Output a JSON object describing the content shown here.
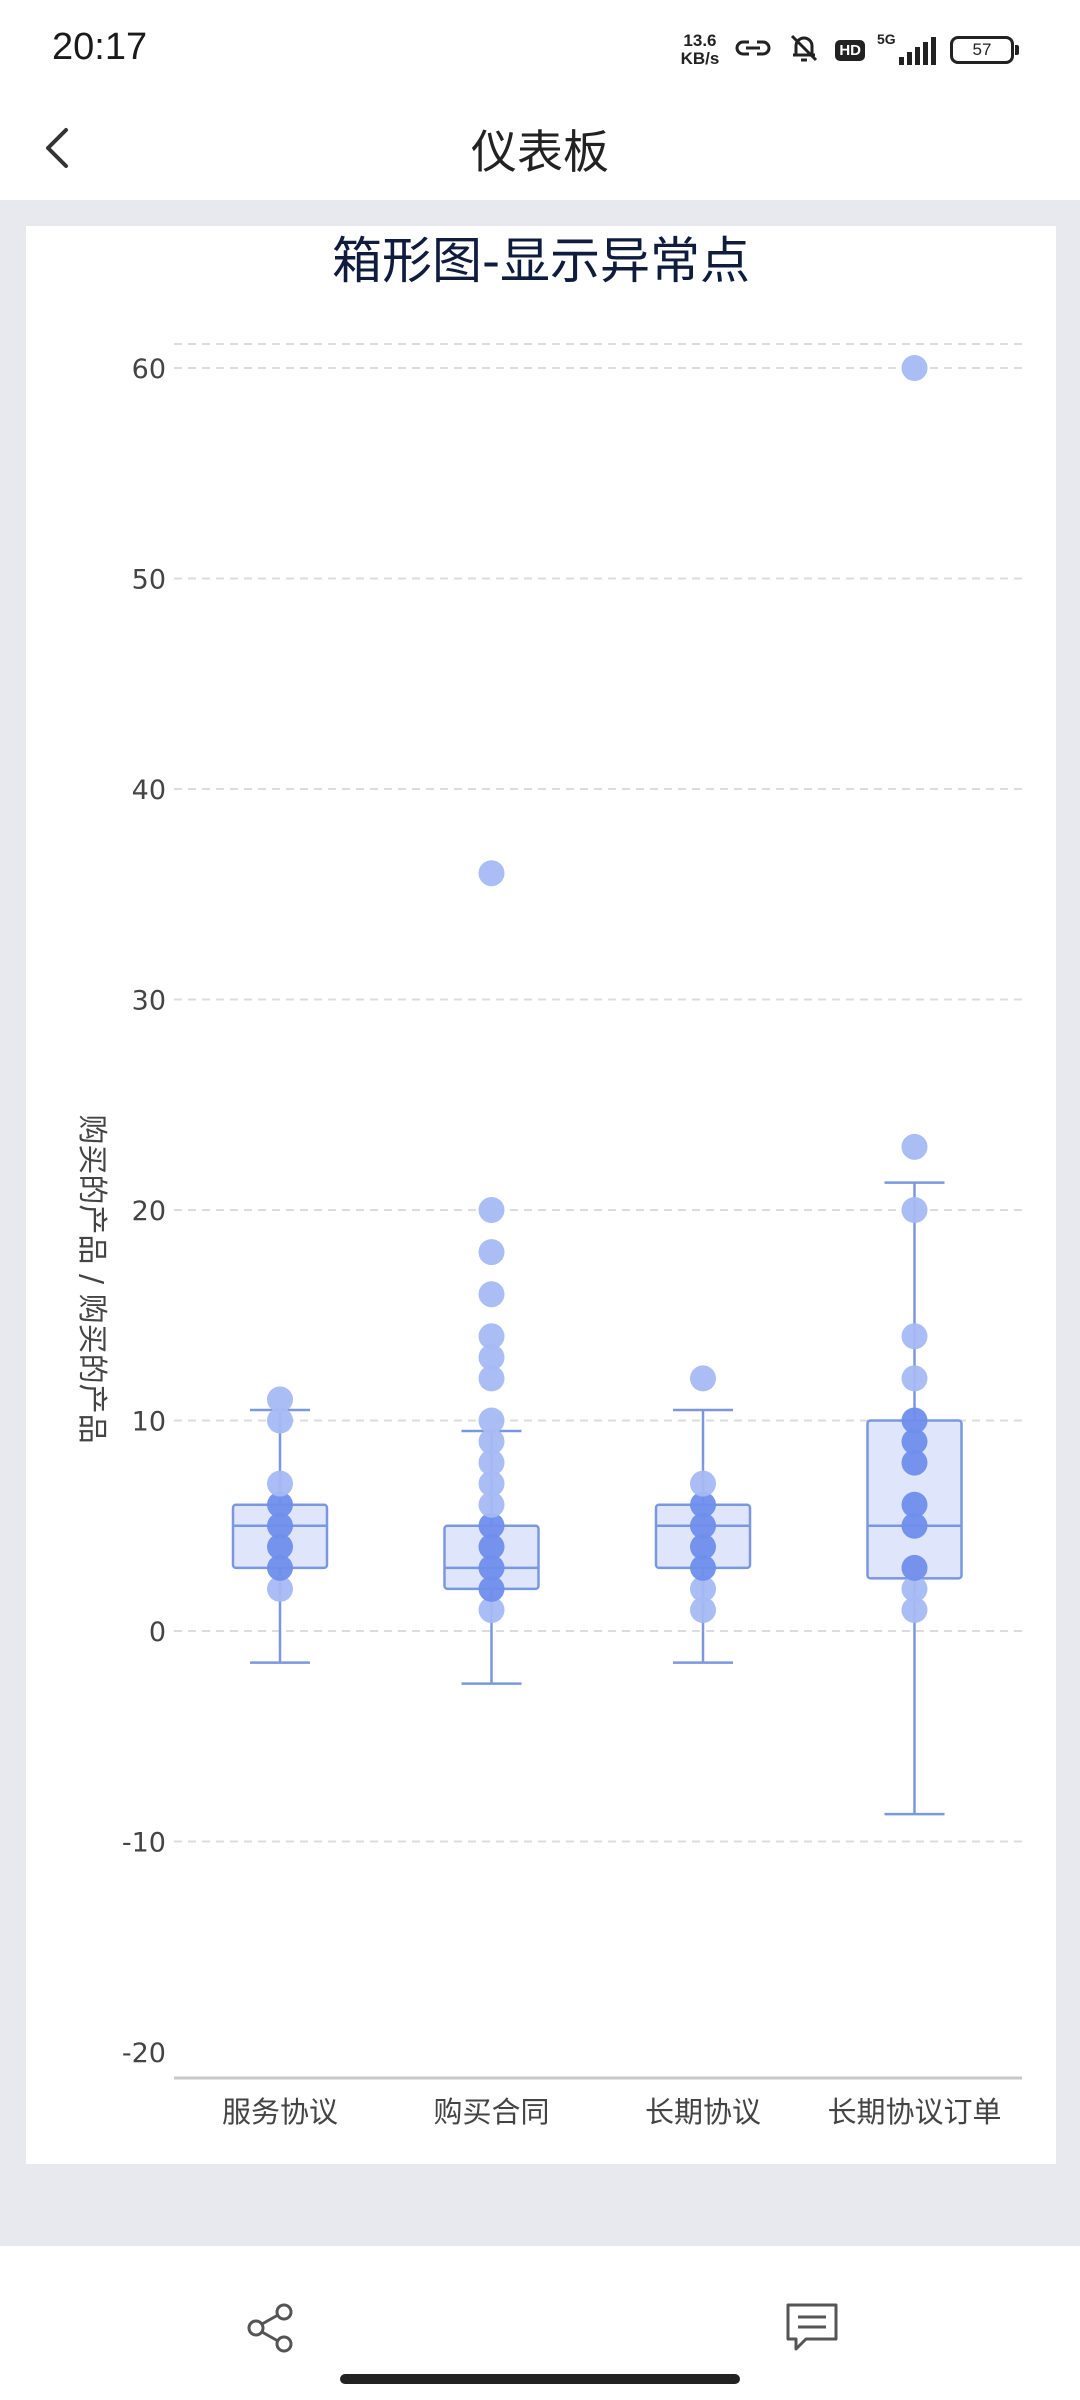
{
  "status_bar": {
    "time": "20:17",
    "net_speed_value": "13.6",
    "net_speed_unit": "KB/s",
    "hd_label": "HD",
    "network_type": "5G",
    "battery_level": "57",
    "icons": [
      "link-icon",
      "bell-muted-icon",
      "hd-icon",
      "signal-icon",
      "battery-icon"
    ]
  },
  "nav": {
    "title": "仪表板",
    "back_icon": "chevron-left-icon"
  },
  "bottom_bar": {
    "share_icon": "share-icon",
    "comment_icon": "comment-icon"
  },
  "colors": {
    "box_fill": "#dfe6fb",
    "box_stroke": "#7a97e0",
    "point_dark": "#6f8eec",
    "point_light": "#a5b9f3",
    "grid": "#dcdcdc",
    "axis_text": "#444444",
    "title_text": "#0f1c3d"
  },
  "chart_data": {
    "type": "box",
    "title": "箱形图-显示异常点",
    "ylabel": "购买的产品 / 购买的产品",
    "ylim": [
      -20,
      60
    ],
    "yticks": [
      60,
      50,
      40,
      30,
      20,
      10,
      0,
      -10,
      -20
    ],
    "grid": true,
    "categories": [
      "服务协议",
      "购买合同",
      "长期协议",
      "长期协议订单"
    ],
    "boxes": [
      {
        "category": "服务协议",
        "whisker_low": -1.5,
        "q1": 3,
        "median": 5,
        "q3": 6,
        "whisker_high": 10.5
      },
      {
        "category": "购买合同",
        "whisker_low": -2.5,
        "q1": 2,
        "median": 3,
        "q3": 5,
        "whisker_high": 9.5
      },
      {
        "category": "长期协议",
        "whisker_low": -1.5,
        "q1": 3,
        "median": 5,
        "q3": 6,
        "whisker_high": 10.5
      },
      {
        "category": "长期协议订单",
        "whisker_low": -8.7,
        "q1": 2.5,
        "median": 5,
        "q3": 10,
        "whisker_high": 21.3
      }
    ],
    "points": [
      {
        "category": "服务协议",
        "values": [
          2,
          3,
          4,
          5,
          6,
          7,
          10,
          11
        ]
      },
      {
        "category": "购买合同",
        "values": [
          1,
          2,
          3,
          4,
          5,
          6,
          7,
          8,
          9,
          10,
          12,
          13,
          14,
          16,
          18,
          20,
          36
        ]
      },
      {
        "category": "长期协议",
        "values": [
          1,
          2,
          3,
          4,
          5,
          6,
          7,
          12
        ]
      },
      {
        "category": "长期协议订单",
        "values": [
          1,
          2,
          3,
          5,
          6,
          8,
          9,
          10,
          12,
          14,
          20,
          23,
          60
        ]
      }
    ]
  }
}
